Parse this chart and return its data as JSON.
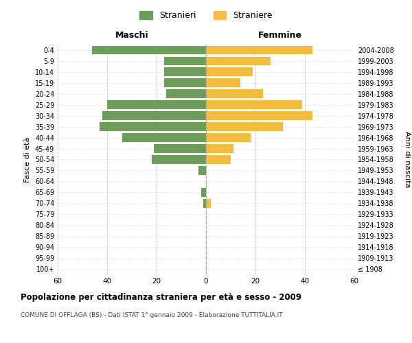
{
  "age_groups": [
    "100+",
    "95-99",
    "90-94",
    "85-89",
    "80-84",
    "75-79",
    "70-74",
    "65-69",
    "60-64",
    "55-59",
    "50-54",
    "45-49",
    "40-44",
    "35-39",
    "30-34",
    "25-29",
    "20-24",
    "15-19",
    "10-14",
    "5-9",
    "0-4"
  ],
  "birth_years": [
    "≤ 1908",
    "1909-1913",
    "1914-1918",
    "1919-1923",
    "1924-1928",
    "1929-1933",
    "1934-1938",
    "1939-1943",
    "1944-1948",
    "1949-1953",
    "1954-1958",
    "1959-1963",
    "1964-1968",
    "1969-1973",
    "1974-1978",
    "1979-1983",
    "1984-1988",
    "1989-1993",
    "1994-1998",
    "1999-2003",
    "2004-2008"
  ],
  "males": [
    0,
    0,
    0,
    0,
    0,
    0,
    1,
    2,
    0,
    3,
    22,
    21,
    34,
    43,
    42,
    40,
    16,
    17,
    17,
    17,
    46
  ],
  "females": [
    0,
    0,
    0,
    0,
    0,
    0,
    2,
    0,
    0,
    0,
    10,
    11,
    18,
    31,
    43,
    39,
    23,
    14,
    19,
    26,
    43
  ],
  "male_color": "#6d9e59",
  "female_color": "#f5bc42",
  "center_line_color": "#aaaaaa",
  "grid_color": "#cccccc",
  "background_color": "#ffffff",
  "title": "Popolazione per cittadinanza straniera per età e sesso - 2009",
  "subtitle": "COMUNE DI OFFLAGA (BS) - Dati ISTAT 1° gennaio 2009 - Elaborazione TUTTITALIA.IT",
  "xlabel_left": "Maschi",
  "xlabel_right": "Femmine",
  "ylabel_left": "Fasce di età",
  "ylabel_right": "Anni di nascita",
  "legend_male": "Stranieri",
  "legend_female": "Straniere",
  "xlim": 60,
  "figsize": [
    6.0,
    5.0
  ],
  "dpi": 100
}
